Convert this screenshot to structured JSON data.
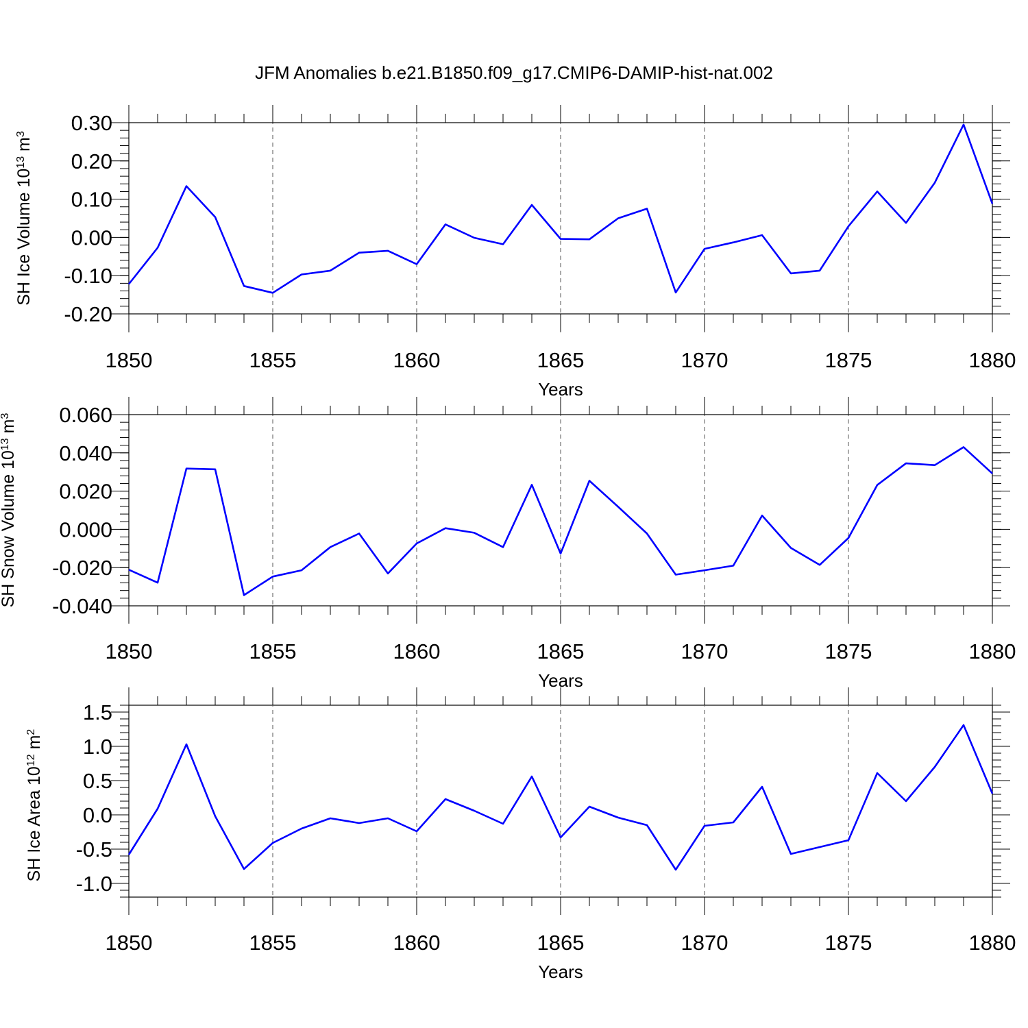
{
  "figure": {
    "title": "JFM Anomalies b.e21.B1850.f09_g17.CMIP6-DAMIP-hist-nat.002"
  },
  "colors": {
    "line": "#0000ff",
    "axis": "#000000",
    "grid": "#555555"
  },
  "chart_data": [
    {
      "type": "line",
      "xlabel": "Years",
      "ylabel": {
        "main": "SH Ice Volume 10",
        "sup": "13",
        "unit": " m",
        "unit_sup": "3"
      },
      "xlim": [
        1850,
        1880
      ],
      "ylim": [
        -0.2,
        0.3
      ],
      "x_ticks": [
        1850,
        1855,
        1860,
        1865,
        1870,
        1875,
        1880
      ],
      "x_tick_labels": [
        "1850",
        "1855",
        "1860",
        "1865",
        "1870",
        "1875",
        "1880"
      ],
      "y_ticks": [
        -0.2,
        -0.1,
        0.0,
        0.1,
        0.2,
        0.3
      ],
      "y_tick_labels": [
        "-0.20",
        "-0.10",
        "0.00",
        "0.10",
        "0.20",
        "0.30"
      ],
      "grid_x": true,
      "x": [
        1850,
        1851,
        1852,
        1853,
        1854,
        1855,
        1856,
        1857,
        1858,
        1859,
        1860,
        1861,
        1862,
        1863,
        1864,
        1865,
        1866,
        1867,
        1868,
        1869,
        1870,
        1871,
        1872,
        1873,
        1874,
        1875,
        1876,
        1877,
        1878,
        1879,
        1880
      ],
      "series": [
        {
          "values": [
            -0.122,
            -0.027,
            0.134,
            0.053,
            -0.127,
            -0.145,
            -0.097,
            -0.087,
            -0.04,
            -0.035,
            -0.07,
            0.034,
            -0.001,
            -0.018,
            0.085,
            -0.004,
            -0.005,
            0.05,
            0.075,
            -0.144,
            -0.03,
            -0.013,
            0.006,
            -0.094,
            -0.087,
            0.029,
            0.12,
            0.038,
            0.143,
            0.295,
            0.088
          ]
        }
      ]
    },
    {
      "type": "line",
      "xlabel": "Years",
      "ylabel": {
        "main": "SH Snow Volume 10",
        "sup": "13",
        "unit": " m",
        "unit_sup": "3"
      },
      "xlim": [
        1850,
        1880
      ],
      "ylim": [
        -0.04,
        0.06
      ],
      "x_ticks": [
        1850,
        1855,
        1860,
        1865,
        1870,
        1875,
        1880
      ],
      "x_tick_labels": [
        "1850",
        "1855",
        "1860",
        "1865",
        "1870",
        "1875",
        "1880"
      ],
      "y_ticks": [
        -0.04,
        -0.02,
        0.0,
        0.02,
        0.04,
        0.06
      ],
      "y_tick_labels": [
        "-0.040",
        "-0.020",
        "0.000",
        "0.020",
        "0.040",
        "0.060"
      ],
      "grid_x": true,
      "x": [
        1850,
        1851,
        1852,
        1853,
        1854,
        1855,
        1856,
        1857,
        1858,
        1859,
        1860,
        1861,
        1862,
        1863,
        1864,
        1865,
        1866,
        1867,
        1868,
        1869,
        1870,
        1871,
        1872,
        1873,
        1874,
        1875,
        1876,
        1877,
        1878,
        1879,
        1880
      ],
      "series": [
        {
          "values": [
            -0.0211,
            -0.0279,
            0.0318,
            0.0314,
            -0.0344,
            -0.0247,
            -0.0214,
            -0.0093,
            -0.0022,
            -0.0231,
            -0.0074,
            0.0006,
            -0.0018,
            -0.0093,
            0.0233,
            -0.0127,
            0.0254,
            0.0118,
            -0.0022,
            -0.0237,
            -0.0214,
            -0.019,
            0.0072,
            -0.0097,
            -0.0186,
            -0.0045,
            0.0232,
            0.0345,
            0.0336,
            0.043,
            0.0292
          ]
        }
      ]
    },
    {
      "type": "line",
      "xlabel": "Years",
      "ylabel": {
        "main": "SH Ice Area 10",
        "sup": "12",
        "unit": " m",
        "unit_sup": "2"
      },
      "xlim": [
        1850,
        1880
      ],
      "ylim": [
        -1.2,
        1.6
      ],
      "x_ticks": [
        1850,
        1855,
        1860,
        1865,
        1870,
        1875,
        1880
      ],
      "x_tick_labels": [
        "1850",
        "1855",
        "1860",
        "1865",
        "1870",
        "1875",
        "1880"
      ],
      "y_ticks": [
        -1.0,
        -0.5,
        0.0,
        0.5,
        1.0,
        1.5
      ],
      "y_tick_labels": [
        "-1.0",
        "-0.5",
        "0.0",
        "0.5",
        "1.0",
        "1.5"
      ],
      "grid_x": true,
      "x": [
        1850,
        1851,
        1852,
        1853,
        1854,
        1855,
        1856,
        1857,
        1858,
        1859,
        1860,
        1861,
        1862,
        1863,
        1864,
        1865,
        1866,
        1867,
        1868,
        1869,
        1870,
        1871,
        1872,
        1873,
        1874,
        1875,
        1876,
        1877,
        1878,
        1879,
        1880
      ],
      "series": [
        {
          "values": [
            -0.58,
            0.09,
            1.03,
            -0.02,
            -0.79,
            -0.41,
            -0.2,
            -0.05,
            -0.12,
            -0.05,
            -0.24,
            0.23,
            0.06,
            -0.13,
            0.56,
            -0.33,
            0.12,
            -0.04,
            -0.15,
            -0.8,
            -0.16,
            -0.11,
            0.41,
            -0.57,
            -0.47,
            -0.37,
            0.61,
            0.2,
            0.7,
            1.31,
            0.31
          ]
        }
      ]
    }
  ]
}
